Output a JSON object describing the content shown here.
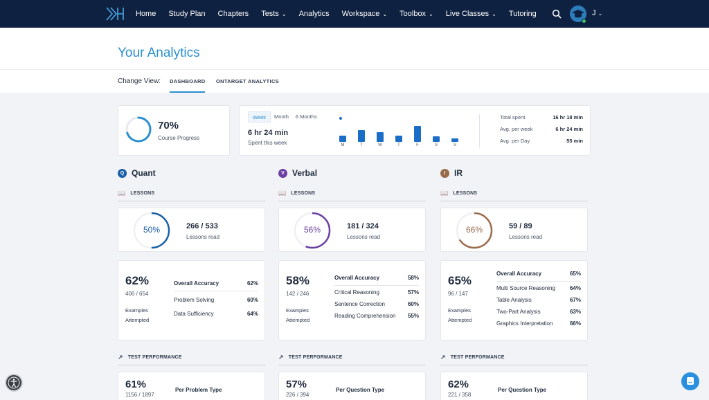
{
  "nav": {
    "items": [
      {
        "label": "Home",
        "dropdown": false
      },
      {
        "label": "Study Plan",
        "dropdown": false
      },
      {
        "label": "Chapters",
        "dropdown": false
      },
      {
        "label": "Tests",
        "dropdown": true
      },
      {
        "label": "Analytics",
        "dropdown": false
      },
      {
        "label": "Workspace",
        "dropdown": true
      },
      {
        "label": "Toolbox",
        "dropdown": true
      },
      {
        "label": "Live Classes",
        "dropdown": true
      },
      {
        "label": "Tutoring",
        "dropdown": false
      }
    ],
    "user_initial": "J",
    "chevron": "⌄"
  },
  "page": {
    "title": "Your Analytics"
  },
  "view": {
    "label": "Change View:",
    "tabs": [
      "DASHBOARD",
      "ONTARGET ANALYTICS"
    ]
  },
  "progress": {
    "value": "70%",
    "label": "Course Progress",
    "fraction": 0.7
  },
  "study": {
    "ranges": [
      "Week",
      "Month",
      "6 Months"
    ],
    "time": "6 hr 24 min",
    "time_label": "Spent this week",
    "days": [
      "M",
      "T",
      "W",
      "T",
      "F",
      "S",
      "S"
    ],
    "day_values": [
      0.35,
      0.65,
      0.55,
      0.35,
      0.9,
      0.3,
      0.2
    ],
    "stats": [
      {
        "label": "Total spent",
        "value": "16 hr 18 min"
      },
      {
        "label": "Avg. per week",
        "value": "6 hr 24 min"
      },
      {
        "label": "Avg. per Day",
        "value": "55 min"
      }
    ]
  },
  "sections": [
    {
      "badge": "Q",
      "name": "Quant",
      "color": "#1a5fa6",
      "lessons_header": "LESSONS",
      "lessons_pct": "50%",
      "lessons_fraction": 0.5,
      "lessons_count": "266 / 533",
      "lessons_label": "Lessons read",
      "acc_pct": "62%",
      "acc_count": "406 / 654",
      "acc_label1": "Examples",
      "acc_label2": "Attempted",
      "acc_rows": [
        {
          "label": "Overall Accuracy",
          "value": "62%"
        },
        {
          "label": "Problem Solving",
          "value": "60%"
        },
        {
          "label": "Data Sufficiency",
          "value": "64%"
        }
      ],
      "test_header": "TEST PERFORMANCE",
      "test_pct": "61%",
      "test_count": "1156 / 1897",
      "test_type": "Per Problem Type"
    },
    {
      "badge": "V",
      "name": "Verbal",
      "color": "#6b3fa0",
      "lessons_header": "LESSONS",
      "lessons_pct": "56%",
      "lessons_fraction": 0.56,
      "lessons_count": "181 / 324",
      "lessons_label": "Lessons read",
      "acc_pct": "58%",
      "acc_count": "142 / 246",
      "acc_label1": "Examples",
      "acc_label2": "Attempted",
      "acc_rows": [
        {
          "label": "Overall Accuracy",
          "value": "58%"
        },
        {
          "label": "Critical Reasoning",
          "value": "57%"
        },
        {
          "label": "Sentence Correction",
          "value": "60%"
        },
        {
          "label": "Reading Comprehension",
          "value": "55%"
        }
      ],
      "test_header": "TEST PERFORMANCE",
      "test_pct": "57%",
      "test_count": "226 / 394",
      "test_type": "Per Question Type"
    },
    {
      "badge": "I",
      "name": "IR",
      "color": "#9a6b4b",
      "lessons_header": "LESSONS",
      "lessons_pct": "66%",
      "lessons_fraction": 0.66,
      "lessons_count": "59 / 89",
      "lessons_label": "Lessons read",
      "acc_pct": "65%",
      "acc_count": "96 / 147",
      "acc_label1": "Examples",
      "acc_label2": "Attempted",
      "acc_rows": [
        {
          "label": "Overall Accuracy",
          "value": "65%"
        },
        {
          "label": "Multi Source Reasoning",
          "value": "64%"
        },
        {
          "label": "Table Analysis",
          "value": "67%"
        },
        {
          "label": "Two-Part Analysis",
          "value": "63%"
        },
        {
          "label": "Graphics Interpretation",
          "value": "66%"
        }
      ],
      "test_header": "TEST PERFORMANCE",
      "test_pct": "62%",
      "test_count": "221 / 358",
      "test_type": "Per Question Type"
    }
  ]
}
